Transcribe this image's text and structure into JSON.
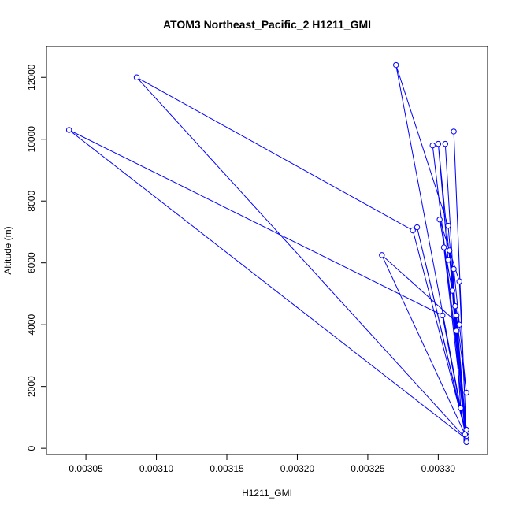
{
  "chart_data": {
    "type": "scatter",
    "title": "ATOM3 Northeast_Pacific_2 H1211_GMI",
    "xlabel": "H1211_GMI",
    "ylabel": "Altitude (m)",
    "xlim": [
      0.003022,
      0.003335
    ],
    "ylim": [
      -200,
      13000
    ],
    "xticks": [
      0.00305,
      0.0031,
      0.00315,
      0.0032,
      0.00325,
      0.0033
    ],
    "xtick_labels": [
      "0.00305",
      "0.00310",
      "0.00315",
      "0.00320",
      "0.00325",
      "0.00330"
    ],
    "yticks": [
      0,
      2000,
      4000,
      6000,
      8000,
      10000,
      12000
    ],
    "ytick_labels": [
      "0",
      "2000",
      "4000",
      "6000",
      "8000",
      "10000",
      "12000"
    ],
    "grid": false,
    "series": [
      {
        "color": "#0000ff",
        "marker": "open-circle",
        "line": true,
        "x": [
          0.00332,
          0.003303,
          0.003038,
          0.00332,
          0.003086,
          0.003282,
          0.00332,
          0.003285,
          0.00332,
          0.00326,
          0.003315,
          0.003304,
          0.00332,
          0.003311,
          0.00332,
          0.00327,
          0.003307,
          0.00332,
          0.003296,
          0.00332,
          0.0033,
          0.003307,
          0.003311,
          0.00332,
          0.003312,
          0.003305,
          0.003313,
          0.00332,
          0.003315,
          0.003301,
          0.003313,
          0.00332,
          0.003308,
          0.003316,
          0.00332,
          0.00331,
          0.003319
        ],
        "y": [
          250,
          4300,
          10300,
          300,
          12000,
          7050,
          400,
          7150,
          350,
          6250,
          4000,
          6500,
          200,
          10250,
          300,
          12400,
          7200,
          500,
          9800,
          600,
          9850,
          6100,
          5800,
          1800,
          4600,
          9850,
          3800,
          350,
          5400,
          7400,
          4300,
          400,
          6400,
          1300,
          200,
          5100,
          450
        ]
      }
    ]
  }
}
